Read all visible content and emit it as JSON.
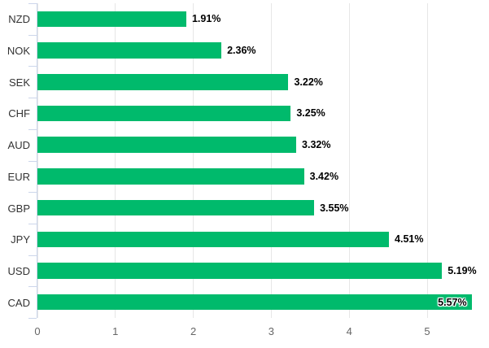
{
  "chart_data": {
    "type": "bar",
    "orientation": "horizontal",
    "title": "",
    "xlabel": "",
    "ylabel": "",
    "categories": [
      "NZD",
      "NOK",
      "SEK",
      "CHF",
      "AUD",
      "EUR",
      "GBP",
      "JPY",
      "USD",
      "CAD"
    ],
    "values": [
      1.91,
      2.36,
      3.22,
      3.25,
      3.32,
      3.42,
      3.55,
      4.51,
      5.19,
      5.57
    ],
    "data_labels": [
      "1.91%",
      "2.36%",
      "3.22%",
      "3.25%",
      "3.32%",
      "3.42%",
      "3.55%",
      "4.51%",
      "5.19%",
      "5.57%"
    ],
    "x_ticks": [
      0,
      1,
      2,
      3,
      4,
      5
    ],
    "x_tick_labels": [
      "0",
      "1",
      "2",
      "3",
      "4",
      "5"
    ],
    "xlim": [
      0,
      5.79
    ],
    "grid": true,
    "legend": false,
    "colors": {
      "bar": "#00ba6c",
      "gridline": "#e6e6e6",
      "axis_line": "#ccd6eb",
      "tick": "#ccd6eb",
      "axis_label": "#666666",
      "category_label": "#333333",
      "data_label": "#000000"
    }
  }
}
